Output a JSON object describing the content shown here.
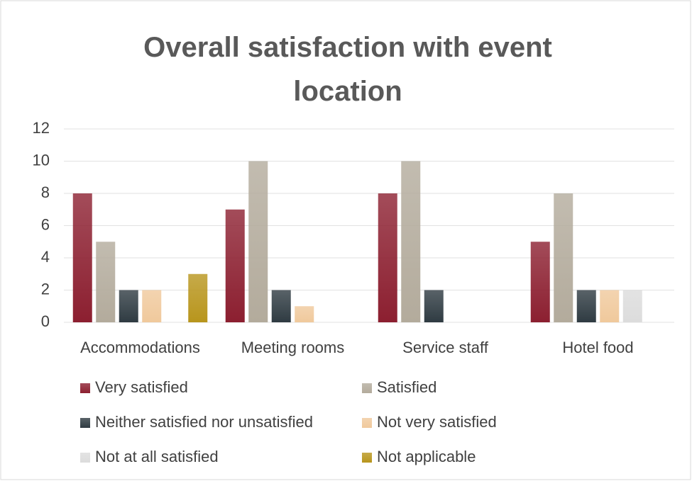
{
  "chart_data": {
    "type": "bar",
    "title": "Overall satisfaction with event location",
    "categories": [
      "Accommodations",
      "Meeting rooms",
      "Service staff",
      "Hotel food"
    ],
    "series": [
      {
        "name": "Very satisfied",
        "color": "#8c1f30",
        "values": [
          8,
          7,
          8,
          5
        ]
      },
      {
        "name": "Satisfied",
        "color": "#b3ab9c",
        "values": [
          5,
          10,
          10,
          8
        ]
      },
      {
        "name": "Neither satisfied nor unsatisfied",
        "color": "#2f3b42",
        "values": [
          2,
          2,
          2,
          2
        ]
      },
      {
        "name": "Not very satisfied",
        "color": "#f0c99c",
        "values": [
          2,
          1,
          0,
          2
        ]
      },
      {
        "name": "Not at all satisfied",
        "color": "#dcdcdc",
        "values": [
          0,
          0,
          0,
          2
        ]
      },
      {
        "name": "Not applicable",
        "color": "#b8951c",
        "values": [
          3,
          0,
          0,
          0
        ]
      }
    ],
    "ylim": [
      0,
      12
    ],
    "yticks": [
      0,
      2,
      4,
      6,
      8,
      10,
      12
    ],
    "grid": true
  }
}
